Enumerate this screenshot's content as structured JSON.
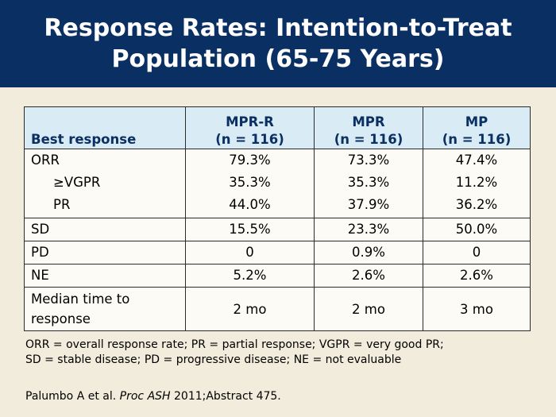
{
  "title": {
    "line1": "Response Rates: Intention-to-Treat",
    "line2": "Population (65-75 Years)"
  },
  "table": {
    "header": {
      "label": "Best response",
      "columns": [
        {
          "name": "MPR-R",
          "n": "(n = 116)"
        },
        {
          "name": "MPR",
          "n": "(n = 116)"
        },
        {
          "name": "MP",
          "n": "(n = 116)"
        }
      ]
    },
    "group1": {
      "labels": [
        "ORR",
        "≥VGPR",
        "PR"
      ],
      "rows": [
        [
          "79.3%",
          "73.3%",
          "47.4%"
        ],
        [
          "35.3%",
          "35.3%",
          "11.2%"
        ],
        [
          "44.0%",
          "37.9%",
          "36.2%"
        ]
      ]
    },
    "rows": [
      {
        "label": "SD",
        "values": [
          "15.5%",
          "23.3%",
          "50.0%"
        ]
      },
      {
        "label": "PD",
        "values": [
          "0",
          "0.9%",
          "0"
        ]
      },
      {
        "label": "NE",
        "values": [
          "5.2%",
          "2.6%",
          "2.6%"
        ]
      }
    ],
    "median": {
      "label_line1": "Median time to",
      "label_line2": "response",
      "values": [
        "2 mo",
        "2 mo",
        "3 mo"
      ]
    }
  },
  "footnote": {
    "line1": "ORR = overall response rate; PR = partial response; VGPR = very good PR;",
    "line2": "SD = stable disease; PD = progressive disease; NE = not evaluable"
  },
  "citation": {
    "authors": "Palumbo A et al. ",
    "journal": "Proc ASH",
    "rest": " 2011;Abstract 475."
  },
  "colors": {
    "title_bar": "#0a2f63",
    "background": "#f1ecdb",
    "header_fill": "#d9ebf5",
    "header_text": "#0a2f63"
  }
}
